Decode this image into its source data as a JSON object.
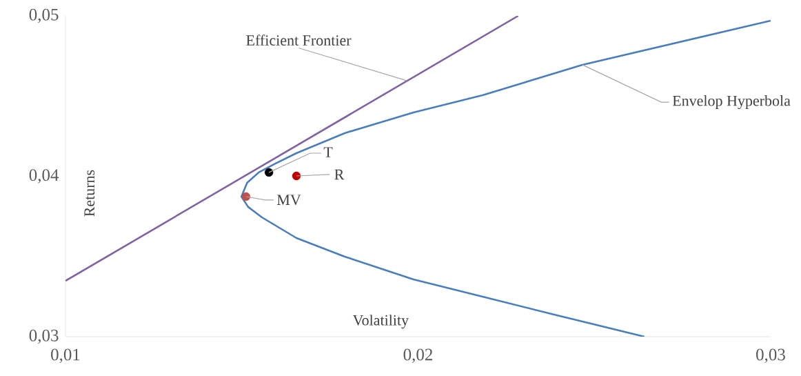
{
  "chart_data": {
    "type": "line",
    "xlabel": "Volatility",
    "ylabel": "Returns",
    "xlim": [
      0.01,
      0.03
    ],
    "ylim": [
      0.03,
      0.05
    ],
    "xticks": [
      {
        "value": 0.01,
        "label": "0,01"
      },
      {
        "value": 0.02,
        "label": "0,02"
      },
      {
        "value": 0.03,
        "label": "0,03"
      }
    ],
    "yticks": [
      {
        "value": 0.03,
        "label": "0,03"
      },
      {
        "value": 0.04,
        "label": "0,04"
      },
      {
        "value": 0.05,
        "label": "0,05"
      }
    ],
    "grid": false,
    "annotations": [
      {
        "text": "Efficient Frontier",
        "x": 0.01968,
        "y": 0.04596
      },
      {
        "text": "Envelop Hyperbola",
        "x": 0.02466,
        "y": 0.04695
      }
    ],
    "series": [
      {
        "color": "#8064a2",
        "x": [
          0.01,
          0.02284
        ],
        "values": [
          0.03348,
          0.05
        ]
      },
      {
        "color": "#4a7ebb",
        "x": [
          0.02642,
          0.02378,
          0.02183,
          0.01987,
          0.01792,
          0.01655,
          0.01557,
          0.01518,
          0.01499,
          0.01515,
          0.01548,
          0.01596,
          0.01655,
          0.01792,
          0.01987,
          0.02183,
          0.02466,
          0.03
        ],
        "values": [
          0.03,
          0.03142,
          0.03249,
          0.03357,
          0.03499,
          0.03615,
          0.03744,
          0.03809,
          0.03873,
          0.03959,
          0.04024,
          0.0408,
          0.04144,
          0.04269,
          0.04398,
          0.04505,
          0.04695,
          0.0497
        ]
      },
      {
        "name": "T",
        "type": "scatter",
        "marker": "circle",
        "color": "#000000",
        "x": [
          0.01577
        ],
        "values": [
          0.04024
        ]
      },
      {
        "name": "R",
        "type": "scatter",
        "marker": "circle",
        "color": "#c00000",
        "x": [
          0.01655
        ],
        "values": [
          0.04002
        ]
      },
      {
        "name": "MV",
        "type": "scatter",
        "marker": "circle",
        "color": "#c0504d",
        "x": [
          0.01512
        ],
        "values": [
          0.03873
        ]
      }
    ]
  }
}
